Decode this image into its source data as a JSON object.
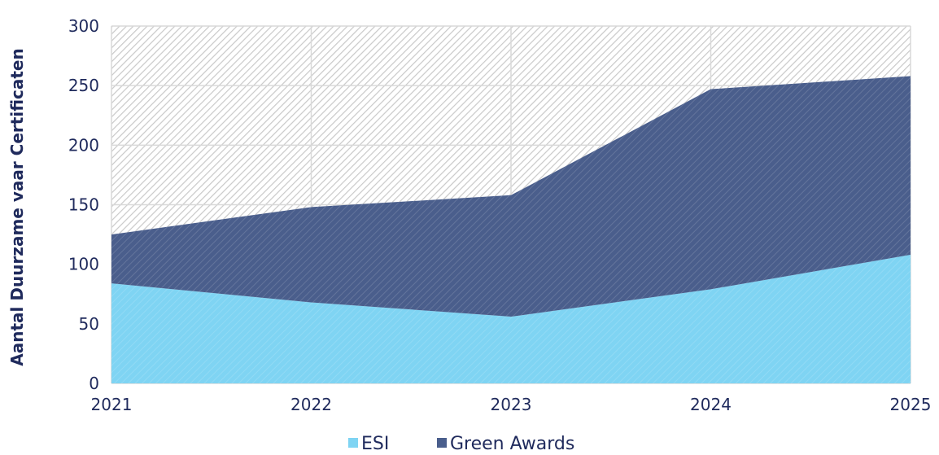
{
  "chart_data": {
    "type": "area",
    "stacked": true,
    "x": [
      "2021",
      "2022",
      "2023",
      "2024",
      "2025"
    ],
    "series": [
      {
        "name": "ESI",
        "values": [
          84,
          68,
          56,
          79,
          108
        ],
        "color": "#7fd4f3"
      },
      {
        "name": "Green Awards",
        "values": [
          41,
          80,
          102,
          168,
          150
        ],
        "color": "#4a5e8c"
      }
    ],
    "ylabel": "Aantal Duurzame vaar Certificaten",
    "xlabel": "",
    "ylim": [
      0,
      300
    ],
    "yticks": [
      0,
      50,
      100,
      150,
      200,
      250,
      300
    ],
    "grid": true,
    "legend_position": "bottom",
    "colors": {
      "grid": "#d9d9d9",
      "text": "#1f2a5c",
      "hatch": "#c9c9c9"
    }
  }
}
